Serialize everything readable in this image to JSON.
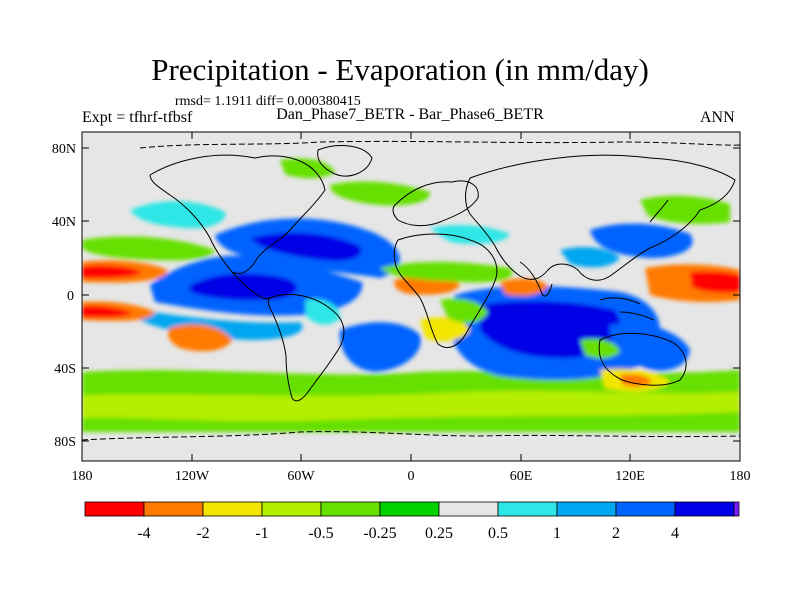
{
  "title": "Precipitation - Evaporation (in mm/day)",
  "stats": "rmsd= 1.1911 diff= 0.000380415",
  "experiment": "Expt = tfhrf-tfbsf",
  "cases": "Dan_Phase7_BETR - Bar_Phase6_BETR",
  "season": "ANN",
  "axes": {
    "lat_ticks": [
      "80N",
      "40N",
      "0",
      "40S",
      "80S"
    ],
    "lon_ticks": [
      "180",
      "120W",
      "60W",
      "0",
      "60E",
      "120E",
      "180"
    ]
  },
  "colorbar": {
    "labels": [
      "-4",
      "-2",
      "-1",
      "-0.5",
      "-0.25",
      "0.25",
      "0.5",
      "1",
      "2",
      "4"
    ],
    "colors": [
      "#ff0000",
      "#ff7a00",
      "#f2e600",
      "#b4ee00",
      "#66e000",
      "#00d200",
      "#e6e6e6",
      "#2de6e6",
      "#00a6f0",
      "#0064ff",
      "#0000e6",
      "#7a1eff"
    ]
  },
  "map_colors": {
    "background": "#e6e6e6",
    "coast": "#000000"
  }
}
